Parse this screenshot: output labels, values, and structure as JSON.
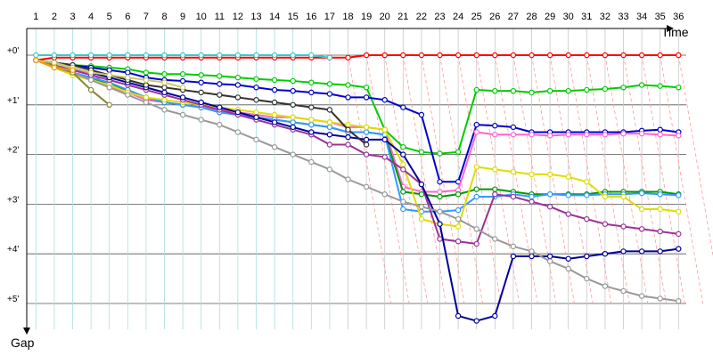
{
  "chart_data": {
    "type": "line",
    "xlabel": "Time",
    "ylabel": "Gap",
    "x": [
      1,
      2,
      3,
      4,
      5,
      6,
      7,
      8,
      9,
      10,
      11,
      12,
      13,
      14,
      15,
      16,
      17,
      18,
      19,
      20,
      21,
      22,
      23,
      24,
      25,
      26,
      27,
      28,
      29,
      30,
      31,
      32,
      33,
      34,
      35,
      36
    ],
    "x_tick_labels": [
      "1",
      "2",
      "3",
      "4",
      "5",
      "6",
      "7",
      "8",
      "9",
      "10",
      "11",
      "12",
      "13",
      "14",
      "15",
      "16",
      "17",
      "18",
      "19",
      "20",
      "21",
      "22",
      "23",
      "24",
      "25",
      "26",
      "27",
      "28",
      "29",
      "30",
      "31",
      "32",
      "33",
      "34",
      "35",
      "36"
    ],
    "y_tick_labels": [
      "+0'",
      "+1'",
      "+2'",
      "+3'",
      "+4'",
      "+5'"
    ],
    "y_ticks": [
      0,
      1,
      2,
      3,
      4,
      5
    ],
    "y_inverted": true,
    "grid": true,
    "series": [
      {
        "color": "#ff0000",
        "values": [
          0.1,
          0.05,
          0.05,
          0.05,
          0.05,
          0.05,
          0.05,
          0.05,
          0.05,
          0.05,
          0.05,
          0.05,
          0.05,
          0.05,
          0.05,
          0.05,
          0.05,
          0.05,
          0,
          0,
          0,
          0,
          0,
          0,
          0,
          0,
          0,
          0,
          0,
          0,
          0,
          0,
          0,
          0,
          0,
          0
        ]
      },
      {
        "color": "#33cccc",
        "values": [
          0,
          0,
          0,
          0,
          0,
          0,
          0,
          0,
          0,
          0,
          0,
          0,
          0,
          0,
          0,
          0,
          0.05,
          null,
          null,
          null,
          null,
          null,
          null,
          null,
          null,
          null,
          null,
          null,
          null,
          null,
          null,
          null,
          null,
          null,
          null,
          null
        ]
      },
      {
        "color": "#00cc00",
        "values": [
          0.1,
          0.15,
          0.2,
          0.22,
          0.25,
          0.28,
          0.35,
          0.38,
          0.38,
          0.4,
          0.42,
          0.45,
          0.48,
          0.5,
          0.52,
          0.55,
          0.58,
          0.6,
          0.65,
          1.5,
          1.85,
          1.95,
          1.98,
          1.95,
          0.7,
          0.72,
          0.72,
          0.75,
          0.72,
          0.72,
          0.7,
          0.68,
          0.65,
          0.6,
          0.62,
          0.65
        ]
      },
      {
        "color": "#0000cc",
        "values": [
          0.1,
          0.15,
          0.2,
          0.25,
          0.3,
          0.35,
          0.45,
          0.5,
          0.52,
          0.55,
          0.58,
          0.6,
          0.65,
          0.7,
          0.72,
          0.75,
          0.78,
          0.85,
          0.85,
          0.9,
          1.05,
          1.2,
          2.55,
          2.55,
          1.4,
          1.42,
          1.45,
          1.55,
          1.55,
          1.55,
          1.55,
          1.55,
          1.55,
          1.52,
          1.5,
          1.55
        ]
      },
      {
        "color": "#ff66cc",
        "values": [
          0.1,
          0.2,
          0.3,
          0.35,
          0.65,
          0.75,
          0.9,
          0.95,
          1,
          1.05,
          1.1,
          1.15,
          1.2,
          1.25,
          1.25,
          1.3,
          1.35,
          1.45,
          1.45,
          1.5,
          2.65,
          2.75,
          2.75,
          2.72,
          1.55,
          1.6,
          1.6,
          1.6,
          1.62,
          1.6,
          1.6,
          1.6,
          1.58,
          1.58,
          1.6,
          1.62
        ]
      },
      {
        "color": "#009900",
        "values": [
          0.1,
          0.2,
          0.35,
          0.45,
          0.6,
          0.7,
          0.85,
          0.95,
          1,
          1.05,
          1.15,
          1.2,
          1.25,
          1.3,
          1.35,
          1.4,
          1.45,
          1.55,
          1.55,
          1.6,
          2.75,
          2.8,
          2.85,
          2.8,
          2.7,
          2.7,
          2.75,
          2.8,
          2.8,
          2.8,
          2.8,
          2.75,
          2.75,
          2.75,
          2.75,
          2.8
        ]
      },
      {
        "color": "#3399ff",
        "values": [
          0.1,
          0.2,
          0.35,
          0.45,
          0.55,
          0.7,
          0.85,
          0.95,
          1,
          1.05,
          1.15,
          1.2,
          1.25,
          1.3,
          1.35,
          1.4,
          1.45,
          1.55,
          1.55,
          1.6,
          3.1,
          3.15,
          3.15,
          3.12,
          2.85,
          2.85,
          2.8,
          2.85,
          2.8,
          2.82,
          2.82,
          2.8,
          2.8,
          2.78,
          2.8,
          2.82
        ]
      },
      {
        "color": "#dddd00",
        "values": [
          0.1,
          0.25,
          0.4,
          0.5,
          0.6,
          0.75,
          0.85,
          0.9,
          0.95,
          1,
          1.05,
          1.1,
          1.15,
          1.2,
          1.25,
          1.3,
          1.35,
          1.4,
          1.45,
          1.5,
          2.2,
          3.3,
          3.4,
          3.45,
          2.25,
          2.3,
          2.35,
          2.4,
          2.4,
          2.45,
          2.55,
          2.85,
          2.85,
          3.1,
          3.1,
          3.15
        ]
      },
      {
        "color": "#993399",
        "values": [
          0.1,
          0.2,
          0.3,
          0.4,
          0.5,
          0.6,
          0.7,
          0.8,
          0.9,
          1,
          1.1,
          1.2,
          1.3,
          1.4,
          1.5,
          1.6,
          1.8,
          1.8,
          2,
          2.05,
          2.3,
          2.6,
          3.7,
          3.75,
          3.8,
          2.8,
          2.85,
          2.95,
          3.05,
          3.2,
          3.3,
          3.4,
          3.45,
          3.5,
          3.55,
          3.6
        ]
      },
      {
        "color": "#000099",
        "values": [
          0.1,
          0.15,
          0.25,
          0.35,
          0.45,
          0.55,
          0.65,
          0.75,
          0.85,
          0.95,
          1.05,
          1.15,
          1.25,
          1.35,
          1.45,
          1.55,
          1.6,
          1.65,
          1.7,
          1.7,
          2.0,
          2.6,
          3.4,
          5.25,
          5.35,
          5.25,
          4.05,
          4.05,
          4.05,
          4.1,
          4.05,
          4.0,
          3.95,
          3.95,
          3.95,
          3.9
        ]
      },
      {
        "color": "#999999",
        "values": [
          0.1,
          0.25,
          0.35,
          0.5,
          0.65,
          0.8,
          0.95,
          1.1,
          1.2,
          1.3,
          1.4,
          1.55,
          1.7,
          1.85,
          2,
          2.15,
          2.3,
          2.5,
          2.65,
          2.8,
          2.95,
          3.05,
          3.15,
          3.3,
          3.5,
          3.7,
          3.85,
          3.95,
          4.15,
          4.3,
          4.5,
          4.65,
          4.75,
          4.85,
          4.9,
          4.95
        ]
      },
      {
        "color": "#333333",
        "values": [
          0.1,
          0.15,
          0.2,
          0.3,
          0.4,
          0.5,
          0.6,
          0.65,
          0.7,
          0.75,
          0.8,
          0.85,
          0.9,
          0.95,
          1.0,
          1.05,
          1.1,
          1.5,
          1.8,
          null,
          null,
          null,
          null,
          null,
          null,
          null,
          null,
          null,
          null,
          null,
          null,
          null,
          null,
          null,
          null,
          null
        ]
      },
      {
        "color": "#888833",
        "values": [
          0.1,
          0.2,
          0.35,
          0.7,
          1.0,
          null,
          null,
          null,
          null,
          null,
          null,
          null,
          null,
          null,
          null,
          null,
          null,
          null,
          null,
          null,
          null,
          null,
          null,
          null,
          null,
          null,
          null,
          null,
          null,
          null,
          null,
          null,
          null,
          null,
          null,
          null
        ]
      },
      {
        "color": "#cccc66",
        "values": [
          0.1,
          0.15,
          0.25,
          0.35,
          0.4,
          0.45,
          0.5,
          0.55,
          0.65,
          null,
          null,
          null,
          null,
          null,
          null,
          null,
          null,
          null,
          null,
          null,
          null,
          null,
          null,
          null,
          null,
          null,
          null,
          null,
          null,
          null,
          null,
          null,
          null,
          null,
          null,
          null
        ]
      },
      {
        "color": "#ff9900",
        "values": [
          0.1,
          0.25,
          0.3,
          null,
          null,
          null,
          null,
          null,
          null,
          null,
          null,
          null,
          null,
          null,
          null,
          null,
          null,
          null,
          null,
          null,
          null,
          null,
          null,
          null,
          null,
          null,
          null,
          null,
          null,
          null,
          null,
          null,
          null,
          null,
          null,
          null
        ]
      }
    ]
  }
}
